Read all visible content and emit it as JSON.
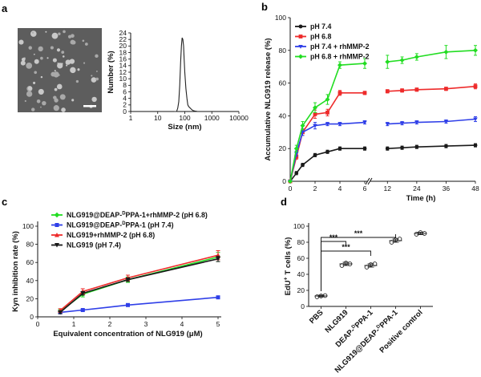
{
  "panels": {
    "a": {
      "label": "a",
      "chart_data": {
        "type": "line",
        "xscale": "log",
        "xlim": [
          1,
          10000
        ],
        "ylim": [
          0,
          24
        ],
        "xticks": [
          "1",
          "10",
          "100",
          "1000",
          "10000"
        ],
        "yticks": [
          "0",
          "2",
          "4",
          "6",
          "8",
          "10",
          "12",
          "14",
          "16",
          "18",
          "20",
          "22",
          "24"
        ],
        "xlabel": "Size (nm)",
        "ylabel": "Number (%)",
        "series": [
          {
            "x": [
              40,
              50,
              55,
              60,
              65,
              70,
              75,
              80,
              85,
              90,
              95,
              100,
              110,
              120,
              130,
              140,
              160,
              180,
              200,
              250,
              300
            ],
            "values": [
              0,
              0,
              1,
              3,
              8,
              15,
              20,
              22.5,
              22,
              20,
              16,
              12,
              7,
              4,
              2,
              1.5,
              1,
              0.6,
              0.3,
              0.1,
              0
            ]
          }
        ]
      }
    },
    "b": {
      "label": "b",
      "chart_data": {
        "type": "line",
        "ylim": [
          0,
          100
        ],
        "yticks": [
          "0",
          "20",
          "40",
          "60",
          "80",
          "100"
        ],
        "xticks": [
          "0",
          "2",
          "4",
          "6",
          "12",
          "24",
          "36",
          "48"
        ],
        "xlabel": "Time (h)",
        "ylabel": "Accumulative NLG919 release (%)",
        "x": [
          0,
          0.5,
          1,
          2,
          3,
          4,
          6,
          12,
          18,
          24,
          36,
          48
        ],
        "series": [
          {
            "name": "pH 7.4",
            "color": "#1a1a1a",
            "values": [
              0,
              5,
              10,
              16,
              18,
              20,
              20,
              20,
              20.5,
              21,
              21.5,
              22
            ],
            "err": [
              0,
              1,
              1,
              1,
              1,
              1,
              1,
              1,
              1,
              1,
              1,
              1
            ]
          },
          {
            "name": "pH 6.8",
            "color": "#ee2b2b",
            "values": [
              0,
              15,
              30,
              41,
              42,
              54,
              54,
              55,
              55.5,
              56,
              56.5,
              58
            ],
            "err": [
              0,
              1.5,
              2,
              2.5,
              2,
              1.5,
              1,
              1,
              1,
              1,
              1,
              1.5
            ]
          },
          {
            "name": "pH 7.4 + rhMMP-2",
            "color": "#2f3fe8",
            "values": [
              0,
              17,
              30,
              34,
              35,
              35,
              36,
              35,
              35.5,
              36,
              36.5,
              38
            ],
            "err": [
              0,
              1.5,
              2,
              2,
              1,
              1,
              1,
              1,
              1,
              1,
              1,
              1.5
            ]
          },
          {
            "name": "pH 6.8 + rhMMP-2",
            "color": "#22dd22",
            "values": [
              0,
              20,
              34,
              45,
              50,
              71,
              72,
              73,
              74,
              76,
              79,
              80
            ],
            "err": [
              0,
              2,
              2.5,
              3,
              3,
              2,
              3,
              4,
              2,
              2,
              4,
              3
            ]
          }
        ]
      }
    },
    "c": {
      "label": "c",
      "chart_data": {
        "type": "line",
        "xlim": [
          0,
          5
        ],
        "ylim": [
          0,
          100
        ],
        "xticks": [
          "0",
          "1",
          "2",
          "3",
          "4",
          "5"
        ],
        "yticks": [
          "0",
          "20",
          "40",
          "60",
          "80",
          "100"
        ],
        "xlabel": "Equivalent concentration of NLG919 (μM)",
        "ylabel": "Kyn inhibition rate (%)",
        "x": [
          0.625,
          1.25,
          2.5,
          5
        ],
        "legend_pre": "NLG919@DEAP-",
        "series": [
          {
            "name_a": "NLG919@DEAP-",
            "name_sup": "D",
            "name_b": "PPA-1+rhMMP-2 (pH 6.8)",
            "color": "#22dd22",
            "marker": "diamond",
            "values": [
              6,
              25,
              41,
              66
            ],
            "err": [
              2,
              3,
              3,
              5
            ]
          },
          {
            "name_a": "NLG919@DEAP-",
            "name_sup": "D",
            "name_b": "PPA-1 (pH 7.4)",
            "color": "#2f3fe8",
            "marker": "square",
            "values": [
              5,
              7.5,
              13,
              21.5
            ],
            "err": [
              1,
              1,
              1,
              1
            ]
          },
          {
            "name_a": "NLG919+rhMMP-2 (pH 6.8)",
            "name_sup": "",
            "name_b": "",
            "color": "#ee2b2b",
            "marker": "triangle",
            "values": [
              7,
              28,
              43,
              68
            ],
            "err": [
              2,
              3,
              3,
              5
            ]
          },
          {
            "name_a": "NLG919 (pH 7.4)",
            "name_sup": "",
            "name_b": "",
            "color": "#1a1a1a",
            "marker": "triangle-down",
            "values": [
              5,
              26,
              41,
              64
            ],
            "err": [
              1.5,
              2,
              2,
              3
            ]
          }
        ]
      }
    },
    "d": {
      "label": "d",
      "chart_data": {
        "type": "scatter",
        "ylim": [
          0,
          100
        ],
        "yticks": [
          "0",
          "20",
          "40",
          "60",
          "80",
          "100"
        ],
        "ylabel_main": "EdU",
        "ylabel_sup": "+",
        "ylabel_rest": " T cells (%)",
        "categories": [
          {
            "a": "PBS",
            "sup": "",
            "b": ""
          },
          {
            "a": "NLG919",
            "sup": "",
            "b": ""
          },
          {
            "a": "DEAP-",
            "sup": "D",
            "b": "PPA-1"
          },
          {
            "a": "NLG919@DEAP-",
            "sup": "D",
            "b": "PPA-1"
          },
          {
            "a": "Positive control",
            "sup": "",
            "b": ""
          }
        ],
        "means": [
          13,
          53,
          51,
          82,
          91
        ],
        "points": [
          [
            12,
            13,
            13.5
          ],
          [
            51,
            54,
            53
          ],
          [
            49,
            52,
            53
          ],
          [
            80,
            83,
            84
          ],
          [
            90,
            92,
            91
          ]
        ],
        "err": [
          1,
          2,
          2,
          2,
          1.5
        ],
        "significance": [
          {
            "from": 0,
            "to": 1,
            "label": "***"
          },
          {
            "from": 0,
            "to": 2,
            "label": "***"
          },
          {
            "from": 0,
            "to": 3,
            "label": "***"
          }
        ]
      }
    }
  }
}
